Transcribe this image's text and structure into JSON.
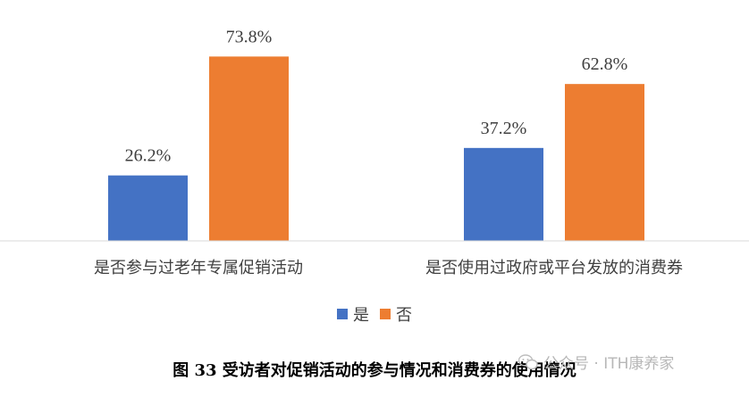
{
  "chart_data": {
    "type": "bar",
    "categories": [
      "是否参与过老年专属促销活动",
      "是否使用过政府或平台发放的消费券"
    ],
    "series": [
      {
        "name": "是",
        "color": "#4472C4",
        "values": [
          26.2,
          37.2
        ]
      },
      {
        "name": "否",
        "color": "#ED7D31",
        "values": [
          73.8,
          62.8
        ]
      }
    ],
    "value_suffix": "%",
    "ylim": [
      0,
      80
    ],
    "grid": false,
    "legend_position": "bottom"
  },
  "caption": "图 33 受访者对促销活动的参与情况和消费券的使用情况",
  "watermark": {
    "text": "公众号 · ITH康养家",
    "icon": "wechat-icon"
  }
}
